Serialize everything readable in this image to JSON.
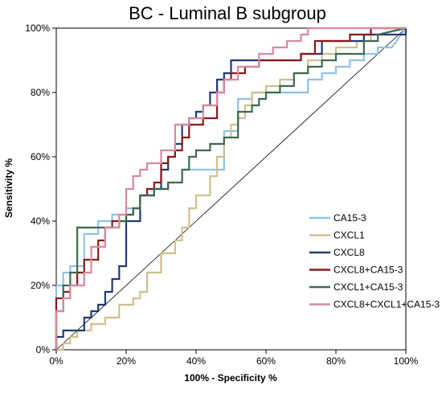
{
  "chart_data": {
    "type": "line",
    "title": "BC - Luminal B subgroup",
    "xlabel": "100% - Specificity %",
    "ylabel": "Sensitivity %",
    "xlim": [
      0,
      100
    ],
    "ylim": [
      0,
      100
    ],
    "x_ticks": [
      "0%",
      "20%",
      "40%",
      "60%",
      "80%",
      "100%"
    ],
    "y_ticks": [
      "0%",
      "20%",
      "40%",
      "60%",
      "80%",
      "100%"
    ],
    "grid": false,
    "legend_position": "right",
    "reference_line": {
      "x": [
        0,
        100
      ],
      "y": [
        0,
        100
      ],
      "color": "#000000"
    },
    "series": [
      {
        "name": "CA15-3",
        "color": "#8ec3ee",
        "x": [
          0,
          0,
          2,
          2,
          4,
          4,
          8,
          8,
          12,
          12,
          16,
          16,
          20,
          20,
          24,
          24,
          28,
          28,
          32,
          32,
          36,
          36,
          40,
          40,
          44,
          44,
          48,
          48,
          52,
          52,
          56,
          56,
          60,
          60,
          64,
          64,
          68,
          68,
          72,
          72,
          76,
          76,
          80,
          80,
          84,
          84,
          88,
          88,
          92,
          92,
          96,
          96,
          100
        ],
        "y": [
          0,
          20,
          20,
          24,
          24,
          26,
          26,
          36,
          36,
          40,
          40,
          42,
          42,
          44,
          44,
          48,
          48,
          50,
          50,
          52,
          52,
          56,
          56,
          56,
          56,
          56,
          56,
          68,
          68,
          78,
          78,
          80,
          80,
          80,
          80,
          80,
          80,
          80,
          80,
          84,
          84,
          86,
          86,
          88,
          88,
          90,
          90,
          92,
          92,
          94,
          94,
          94,
          100
        ]
      },
      {
        "name": "CXCL1",
        "color": "#d2bf8e",
        "x": [
          0,
          2,
          2,
          4,
          4,
          6,
          6,
          10,
          10,
          14,
          14,
          18,
          18,
          22,
          22,
          24,
          24,
          26,
          26,
          30,
          30,
          34,
          34,
          36,
          36,
          38,
          38,
          40,
          40,
          44,
          44,
          46,
          46,
          48,
          48,
          50,
          50,
          52,
          52,
          54,
          54,
          56,
          56,
          60,
          60,
          64,
          64,
          68,
          68,
          72,
          72,
          76,
          76,
          80,
          80,
          86,
          86,
          90,
          90,
          100
        ],
        "y": [
          0,
          0,
          2,
          2,
          4,
          4,
          6,
          6,
          8,
          8,
          10,
          10,
          14,
          14,
          16,
          16,
          18,
          18,
          24,
          24,
          30,
          30,
          34,
          34,
          38,
          38,
          44,
          44,
          48,
          48,
          54,
          54,
          60,
          60,
          66,
          66,
          70,
          70,
          72,
          72,
          76,
          76,
          80,
          80,
          82,
          82,
          84,
          84,
          86,
          86,
          90,
          90,
          92,
          92,
          94,
          94,
          96,
          96,
          100,
          100
        ]
      },
      {
        "name": "CXCL8",
        "color": "#1f3a7a",
        "x": [
          0,
          0,
          2,
          2,
          4,
          4,
          8,
          8,
          10,
          10,
          12,
          12,
          14,
          14,
          16,
          16,
          18,
          18,
          20,
          20,
          24,
          24,
          28,
          28,
          30,
          30,
          32,
          32,
          34,
          34,
          36,
          36,
          38,
          38,
          40,
          40,
          42,
          42,
          44,
          44,
          46,
          46,
          48,
          48,
          50,
          50,
          52,
          52,
          54,
          54,
          70,
          70,
          76,
          76,
          88,
          88,
          94,
          94,
          100,
          100
        ],
        "y": [
          0,
          4,
          4,
          6,
          6,
          6,
          6,
          10,
          10,
          12,
          12,
          14,
          14,
          18,
          18,
          22,
          22,
          26,
          26,
          40,
          40,
          48,
          48,
          50,
          50,
          56,
          56,
          60,
          60,
          64,
          64,
          70,
          70,
          72,
          72,
          74,
          74,
          76,
          76,
          80,
          80,
          84,
          84,
          86,
          86,
          90,
          90,
          90,
          90,
          90,
          90,
          92,
          92,
          96,
          96,
          98,
          98,
          98,
          98,
          100
        ]
      },
      {
        "name": "CXCL8+CA15-3",
        "color": "#8b1a1a",
        "x": [
          0,
          0,
          2,
          2,
          4,
          4,
          6,
          6,
          8,
          8,
          12,
          12,
          14,
          14,
          16,
          16,
          20,
          20,
          22,
          22,
          24,
          24,
          26,
          26,
          28,
          28,
          30,
          30,
          32,
          32,
          34,
          34,
          36,
          36,
          38,
          38,
          42,
          42,
          46,
          46,
          48,
          48,
          50,
          50,
          54,
          54,
          58,
          58,
          62,
          62,
          70,
          70,
          74,
          74,
          84,
          84,
          90,
          90,
          100
        ],
        "y": [
          0,
          16,
          16,
          18,
          18,
          20,
          20,
          24,
          24,
          28,
          28,
          34,
          34,
          38,
          38,
          40,
          40,
          42,
          42,
          44,
          44,
          48,
          48,
          50,
          50,
          52,
          52,
          58,
          58,
          60,
          60,
          62,
          62,
          66,
          66,
          70,
          70,
          72,
          72,
          80,
          80,
          84,
          84,
          86,
          86,
          88,
          88,
          90,
          90,
          90,
          90,
          92,
          92,
          96,
          96,
          98,
          98,
          100,
          100
        ]
      },
      {
        "name": "CXCL1+CA15-3",
        "color": "#3e6a4f",
        "x": [
          0,
          0,
          2,
          2,
          4,
          4,
          6,
          6,
          18,
          18,
          20,
          20,
          22,
          22,
          24,
          24,
          28,
          28,
          32,
          32,
          36,
          36,
          38,
          38,
          40,
          40,
          44,
          44,
          48,
          48,
          52,
          52,
          56,
          56,
          58,
          58,
          60,
          60,
          64,
          64,
          68,
          68,
          72,
          72,
          76,
          76,
          80,
          80,
          88,
          88,
          92,
          92,
          100
        ],
        "y": [
          0,
          12,
          12,
          20,
          20,
          24,
          24,
          38,
          38,
          40,
          40,
          42,
          42,
          44,
          44,
          48,
          48,
          50,
          50,
          52,
          52,
          56,
          56,
          60,
          60,
          62,
          62,
          64,
          64,
          66,
          66,
          74,
          74,
          76,
          76,
          78,
          78,
          80,
          80,
          82,
          82,
          86,
          86,
          88,
          88,
          90,
          90,
          92,
          92,
          96,
          96,
          98,
          100
        ]
      },
      {
        "name": "CXCL8+CXCL1+CA15-3",
        "color": "#d7899f",
        "x": [
          0,
          0,
          2,
          2,
          4,
          4,
          8,
          8,
          10,
          10,
          14,
          14,
          18,
          18,
          20,
          20,
          22,
          22,
          24,
          24,
          26,
          26,
          30,
          30,
          34,
          34,
          38,
          38,
          42,
          42,
          46,
          46,
          48,
          48,
          52,
          52,
          58,
          58,
          62,
          62,
          66,
          66,
          70,
          70,
          72,
          72,
          80,
          80,
          90,
          90,
          100
        ],
        "y": [
          0,
          12,
          12,
          16,
          16,
          20,
          20,
          24,
          24,
          32,
          32,
          38,
          38,
          42,
          42,
          50,
          50,
          54,
          54,
          56,
          56,
          58,
          58,
          62,
          62,
          70,
          70,
          72,
          72,
          76,
          76,
          80,
          80,
          84,
          84,
          88,
          88,
          92,
          92,
          94,
          94,
          96,
          96,
          98,
          98,
          100,
          100,
          100,
          100,
          100,
          100
        ]
      }
    ]
  }
}
